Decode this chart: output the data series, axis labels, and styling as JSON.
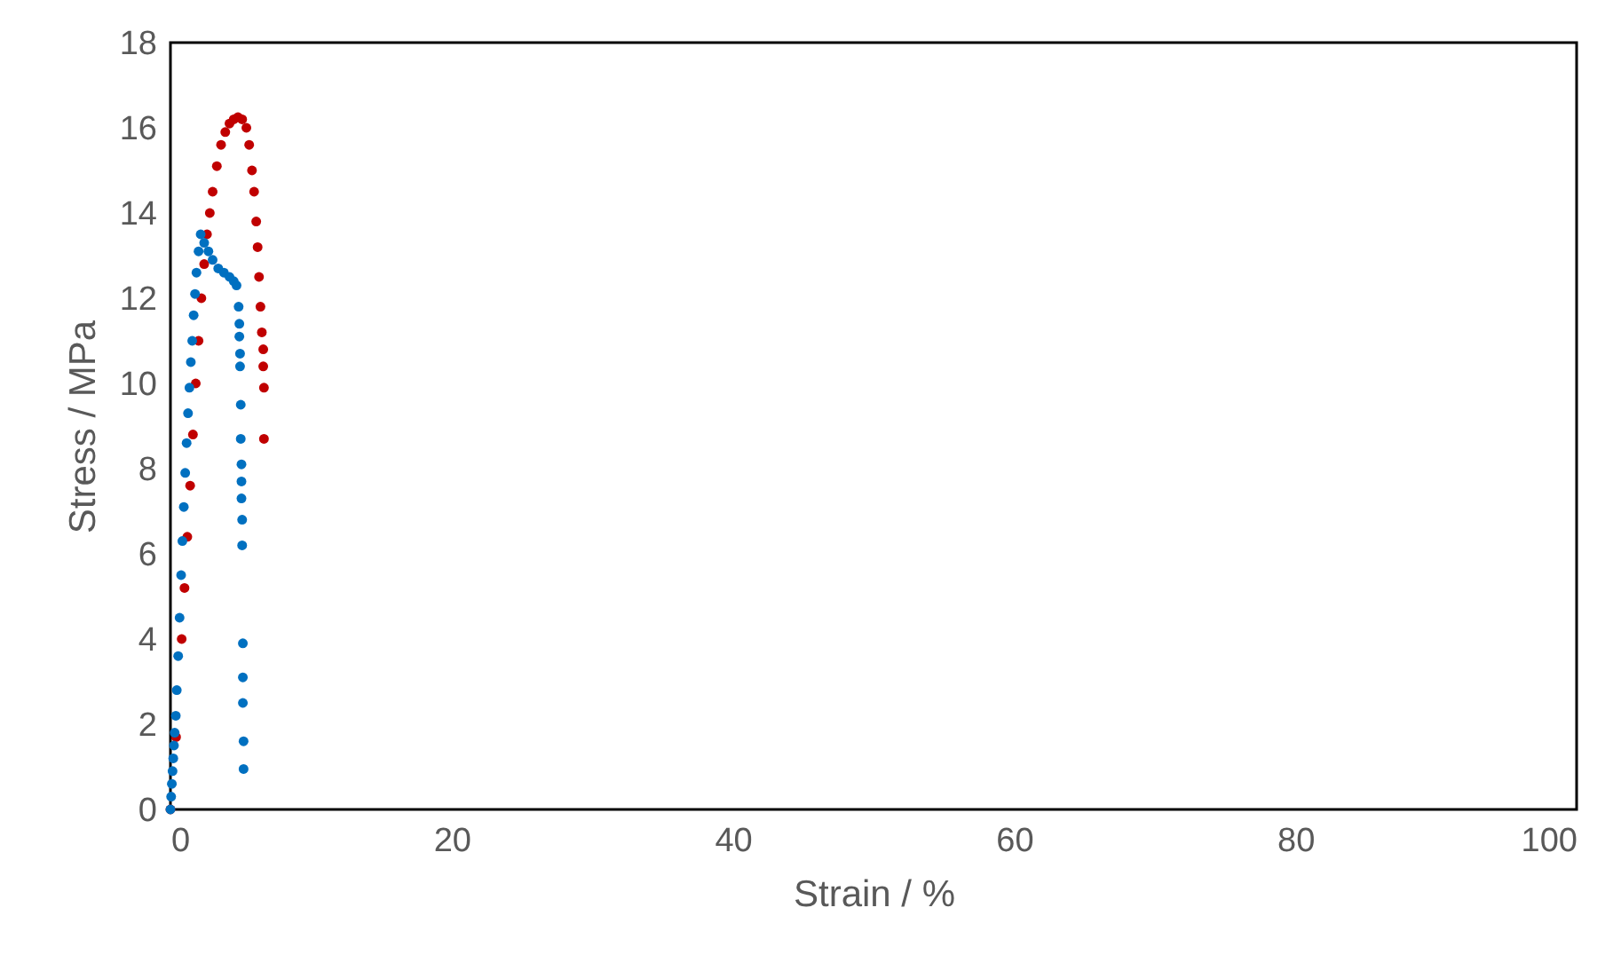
{
  "chart_data": {
    "type": "scatter",
    "xlabel": "Strain / %",
    "ylabel": "Stress / MPa",
    "xlim": [
      0,
      100
    ],
    "xticks": [
      0,
      20,
      40,
      60,
      80,
      100
    ],
    "ylim": [
      0,
      18
    ],
    "yticks": [
      0,
      2,
      4,
      6,
      8,
      10,
      12,
      14,
      16,
      18
    ],
    "grid": false,
    "legend": false,
    "marker": "circle",
    "series": [
      {
        "color": "#c00000",
        "x": [
          0,
          0.4,
          0.8,
          1.0,
          1.2,
          1.4,
          1.6,
          1.8,
          2.0,
          2.2,
          2.4,
          2.6,
          2.8,
          3.0,
          3.3,
          3.6,
          3.9,
          4.2,
          4.5,
          4.8,
          5.1,
          5.4,
          5.6,
          5.8,
          5.95,
          6.1,
          6.2,
          6.3,
          6.4,
          6.5,
          6.6,
          6.6,
          6.65,
          6.65
        ],
        "values": [
          0,
          1.7,
          4.0,
          5.2,
          6.4,
          7.6,
          8.8,
          10.0,
          11.0,
          12.0,
          12.8,
          13.5,
          14.0,
          14.5,
          15.1,
          15.6,
          15.9,
          16.1,
          16.2,
          16.25,
          16.2,
          16.0,
          15.6,
          15.0,
          14.5,
          13.8,
          13.2,
          12.5,
          11.8,
          11.2,
          10.8,
          10.4,
          9.9,
          8.7
        ]
      },
      {
        "color": "#0070c0",
        "x": [
          0,
          0.05,
          0.1,
          0.15,
          0.2,
          0.25,
          0.3,
          0.38,
          0.45,
          0.55,
          0.65,
          0.76,
          0.85,
          0.95,
          1.05,
          1.15,
          1.25,
          1.35,
          1.45,
          1.55,
          1.65,
          1.75,
          1.85,
          2.0,
          2.15,
          2.4,
          2.7,
          3.0,
          3.4,
          3.8,
          4.2,
          4.5,
          4.7,
          4.85,
          4.9,
          4.9,
          4.95,
          4.95,
          5.0,
          5.0,
          5.05,
          5.05,
          5.05,
          5.1,
          5.1,
          5.15,
          5.15,
          5.15,
          5.2,
          5.2
        ],
        "values": [
          0,
          0.3,
          0.6,
          0.9,
          1.2,
          1.5,
          1.8,
          2.2,
          2.8,
          3.6,
          4.5,
          5.5,
          6.3,
          7.1,
          7.9,
          8.6,
          9.3,
          9.9,
          10.5,
          11.0,
          11.6,
          12.1,
          12.6,
          13.1,
          13.5,
          13.3,
          13.1,
          12.9,
          12.7,
          12.6,
          12.5,
          12.4,
          12.3,
          11.8,
          11.4,
          11.1,
          10.7,
          10.4,
          9.5,
          8.7,
          8.1,
          7.7,
          7.3,
          6.8,
          6.2,
          3.9,
          3.1,
          2.5,
          1.6,
          0.95
        ]
      }
    ]
  }
}
